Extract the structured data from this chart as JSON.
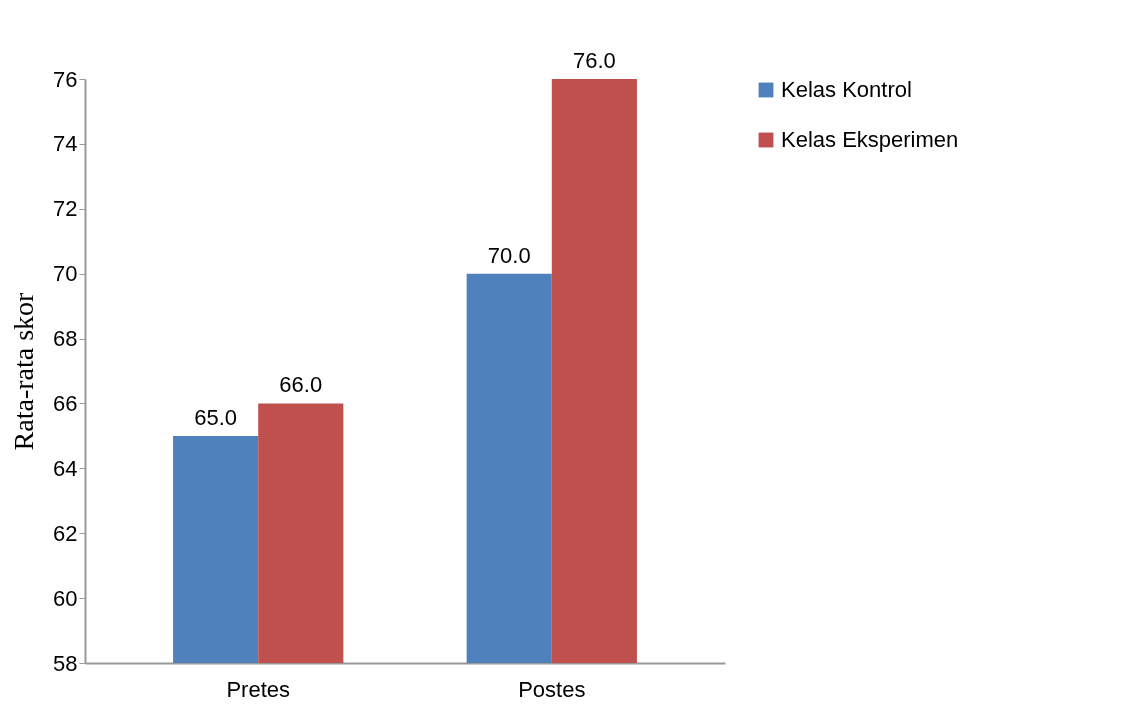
{
  "chart_data": {
    "type": "bar",
    "ylabel": "Rata-rata skor",
    "categories": [
      "Pretes",
      "Postes"
    ],
    "series": [
      {
        "name": "Kelas Kontrol",
        "color": "#4f81bd",
        "values": [
          65,
          70
        ],
        "value_labels": [
          "65.0",
          "70.0"
        ]
      },
      {
        "name": "Kelas Eksperimen",
        "color": "#c0504d",
        "values": [
          66,
          76
        ],
        "value_labels": [
          "66.0",
          "76.0"
        ]
      }
    ],
    "ylim": [
      58,
      76
    ],
    "yticks": [
      58,
      60,
      62,
      64,
      66,
      68,
      70,
      72,
      74,
      76
    ],
    "grid": false,
    "legend": "right"
  }
}
